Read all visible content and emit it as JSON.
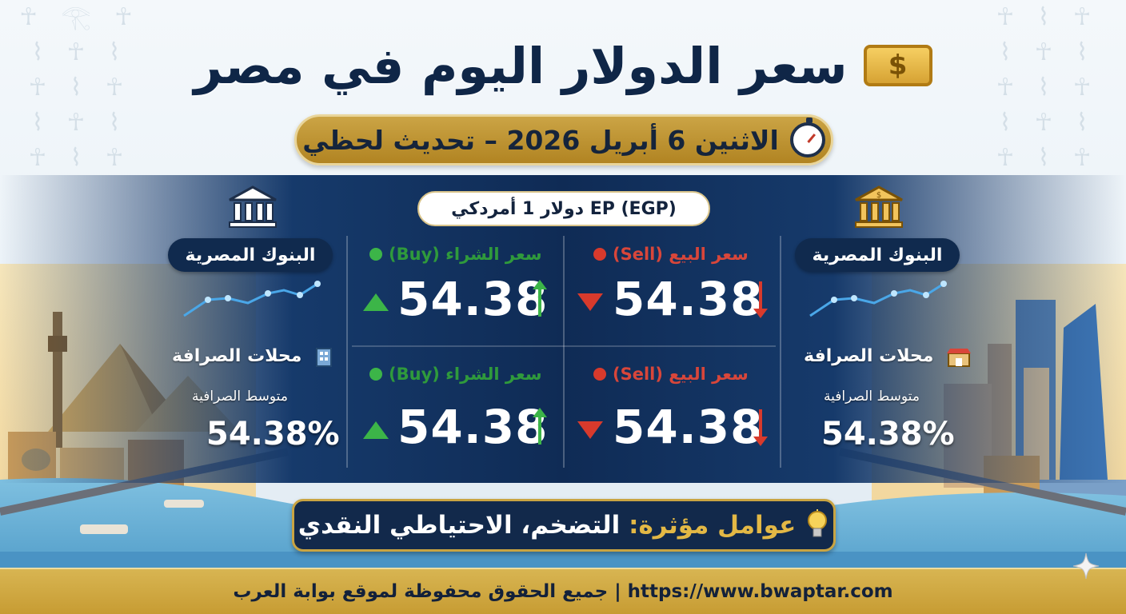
{
  "header": {
    "title": "سعر الدولار اليوم في مصر",
    "date_line": "الاثنين 6 أبريل 2026 – تحديث لحظي",
    "unit_label": "EP (EGP) دولار 1 أمردكي"
  },
  "left_panel": {
    "banks_label": "البنوك المصرية",
    "exchange_label": "محلات الصرافة",
    "average_label": "متوسط الصرافية",
    "average_value": "54.38%"
  },
  "right_panel": {
    "banks_label": "البنوك المصرية",
    "exchange_label": "محلات الصرافة",
    "average_label": "متوسط الصرافية",
    "average_value": "54.38%"
  },
  "rates": {
    "row1": {
      "sell_label": "سعر البيع (Sell)",
      "sell_value": "54.38",
      "buy_label": "سعر الشراء (Buy)",
      "buy_value": "54.38"
    },
    "row2": {
      "sell_label": "سعر البيع (Sell)",
      "sell_value": "54.38",
      "buy_label": "سعر الشراء (Buy)",
      "buy_value": "54.38"
    }
  },
  "factors": {
    "prefix": "عوامل مؤثرة:",
    "text": "التضخم، الاحتياطي النقدي"
  },
  "footer": {
    "text": "جميع الحقوق محفوظة لموقع بوابة العرب | https://www.bwaptar.com"
  },
  "colors": {
    "navy": "#0f2b55",
    "gold": "#c79c33",
    "sell_red": "#d8463a",
    "buy_green": "#2f9a3c"
  },
  "icons": {
    "title": "cash-icon",
    "date": "stopwatch-icon",
    "bank": "bank-icon",
    "exchange": "shop-icon",
    "factors": "lightbulb-icon",
    "corner": "sparkle-icon"
  }
}
